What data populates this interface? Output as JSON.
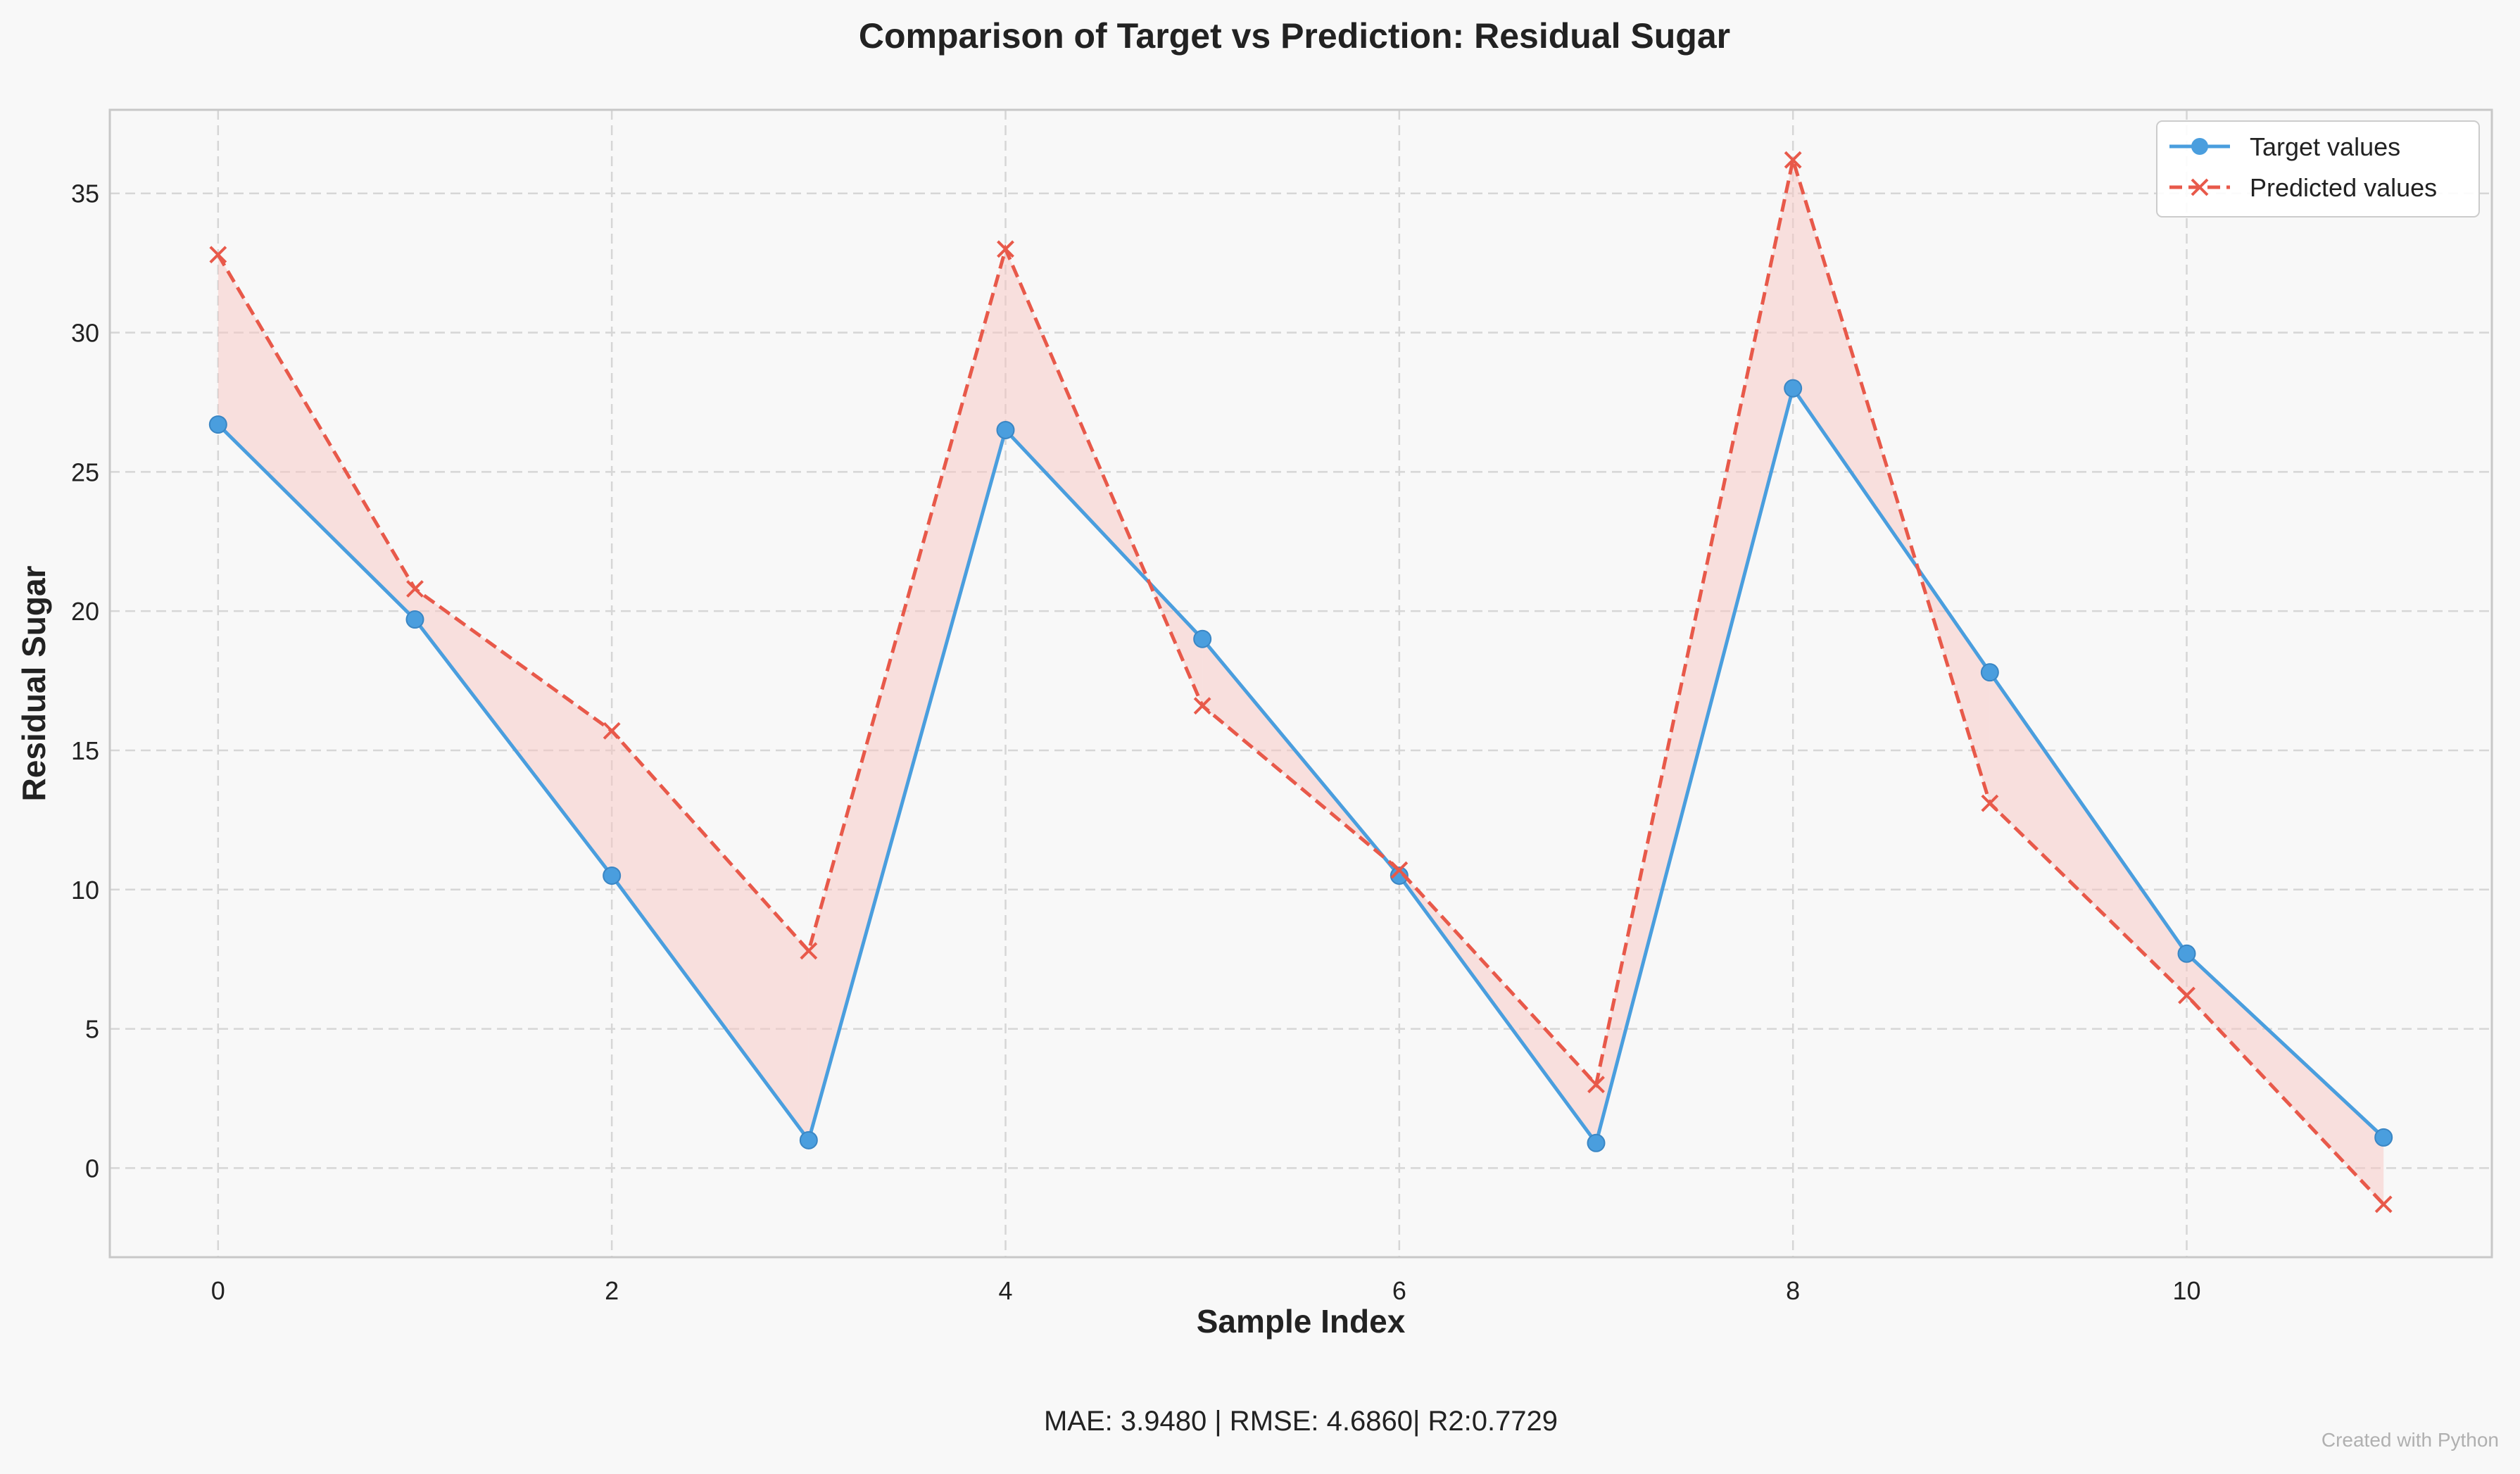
{
  "chart_data": {
    "type": "line",
    "title": "Comparison of Target vs Prediction: Residual Sugar",
    "xlabel": "Sample Index",
    "ylabel": "Residual Sugar",
    "x": [
      0,
      1,
      2,
      3,
      4,
      5,
      6,
      7,
      8,
      9,
      10,
      11
    ],
    "xlim": [
      -0.55,
      11.55
    ],
    "ylim": [
      -3.2,
      38.0
    ],
    "xticks": [
      0,
      2,
      4,
      6,
      8,
      10
    ],
    "yticks": [
      0,
      5,
      10,
      15,
      20,
      25,
      30,
      35
    ],
    "grid": true,
    "legend_position": "top-right",
    "series": [
      {
        "name": "Target values",
        "values": [
          26.7,
          19.7,
          10.5,
          1.0,
          26.5,
          19.0,
          10.5,
          0.9,
          28.0,
          17.8,
          7.7,
          1.1
        ],
        "color": "#4a9ede",
        "marker": "circle",
        "line_style": "solid"
      },
      {
        "name": "Predicted values",
        "values": [
          32.8,
          20.8,
          15.7,
          7.8,
          33.0,
          16.6,
          10.7,
          3.0,
          36.2,
          13.1,
          6.2,
          -1.3
        ],
        "color": "#e8594a",
        "marker": "x",
        "line_style": "dashed"
      }
    ],
    "fill_between_color": "#f7c6c2"
  },
  "metrics_text": "MAE: 3.9480 | RMSE: 4.6860| R2:0.7729",
  "credit_text": "Created with Python"
}
